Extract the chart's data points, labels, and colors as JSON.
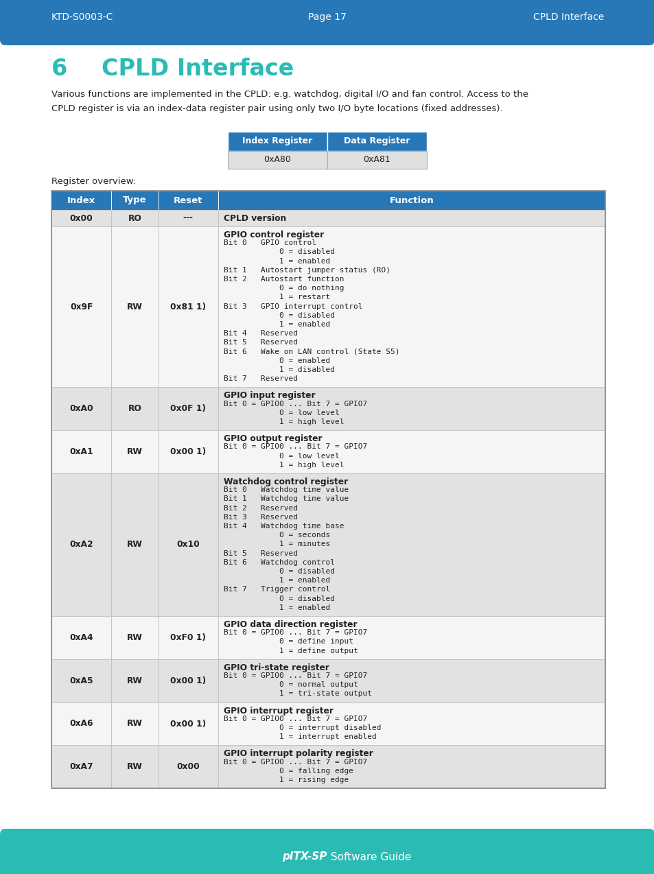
{
  "header_bg": "#2878b8",
  "header_text_color": "#ffffff",
  "footer_bg": "#2abcb4",
  "footer_text_color": "#ffffff",
  "page_bg": "#ffffff",
  "teal_color": "#2abcb4",
  "blue_color": "#2878b8",
  "dark_text": "#222222",
  "header_left": "KTD-S0003-C",
  "header_center": "Page 17",
  "header_right": "CPLD Interface",
  "footer_center_bold": "pITX-SP",
  "footer_center_rest": " Software Guide",
  "section_number": "6",
  "section_title": "CPLD Interface",
  "body_line1": "Various functions are implemented in the CPLD: e.g. watchdog, digital I/O and fan control. Access to the",
  "body_line2": "CPLD register is via an index-data register pair using only two I/O byte locations (fixed addresses).",
  "small_table_headers": [
    "Index Register",
    "Data Register"
  ],
  "small_table_row": [
    "0xA80",
    "0xA81"
  ],
  "register_overview_label": "Register overview:",
  "table_headers": [
    "Index",
    "Type",
    "Reset",
    "Function"
  ],
  "table_header_bg": "#2878b8",
  "table_header_text": "#ffffff",
  "table_row_alt": "#e2e2e2",
  "table_row_white": "#f5f5f5",
  "table_border": "#bbbbbb",
  "table_data": [
    {
      "index": "0x00",
      "type": "RO",
      "reset": "---",
      "function_lines": [
        "CPLD version"
      ]
    },
    {
      "index": "0x9F",
      "type": "RW",
      "reset": "0x81 1)",
      "function_lines": [
        "GPIO control register",
        "Bit 0   GPIO control",
        "            0 = disabled",
        "            1 = enabled",
        "Bit 1   Autostart jumper status (RO)",
        "Bit 2   Autostart function",
        "            0 = do nothing",
        "            1 = restart",
        "Bit 3   GPIO interrupt control",
        "            0 = disabled",
        "            1 = enabled",
        "Bit 4   Reserved",
        "Bit 5   Reserved",
        "Bit 6   Wake on LAN control (State S5)",
        "            0 = enabled",
        "            1 = disabled",
        "Bit 7   Reserved"
      ]
    },
    {
      "index": "0xA0",
      "type": "RO",
      "reset": "0x0F 1)",
      "function_lines": [
        "GPIO input register",
        "Bit 0 = GPIO0 ... Bit 7 = GPIO7",
        "            0 = low level",
        "            1 = high level"
      ]
    },
    {
      "index": "0xA1",
      "type": "RW",
      "reset": "0x00 1)",
      "function_lines": [
        "GPIO output register",
        "Bit 0 = GPIO0 ... Bit 7 = GPIO7",
        "            0 = low level",
        "            1 = high level"
      ]
    },
    {
      "index": "0xA2",
      "type": "RW",
      "reset": "0x10",
      "function_lines": [
        "Watchdog control register",
        "Bit 0   Watchdog time value",
        "Bit 1   Watchdog time value",
        "Bit 2   Reserved",
        "Bit 3   Reserved",
        "Bit 4   Watchdog time base",
        "            0 = seconds",
        "            1 = minutes",
        "Bit 5   Reserved",
        "Bit 6   Watchdog control",
        "            0 = disabled",
        "            1 = enabled",
        "Bit 7   Trigger control",
        "            0 = disabled",
        "            1 = enabled"
      ]
    },
    {
      "index": "0xA4",
      "type": "RW",
      "reset": "0xF0 1)",
      "function_lines": [
        "GPIO data direction register",
        "Bit 0 = GPIO0 ... Bit 7 = GPIO7",
        "            0 = define input",
        "            1 = define output"
      ]
    },
    {
      "index": "0xA5",
      "type": "RW",
      "reset": "0x00 1)",
      "function_lines": [
        "GPIO tri-state register",
        "Bit 0 = GPIO0 ... Bit 7 = GPIO7",
        "            0 = normal output",
        "            1 = tri-state output"
      ]
    },
    {
      "index": "0xA6",
      "type": "RW",
      "reset": "0x00 1)",
      "function_lines": [
        "GPIO interrupt register",
        "Bit 0 = GPIO0 ... Bit 7 = GPIO7",
        "            0 = interrupt disabled",
        "            1 = interrupt enabled"
      ]
    },
    {
      "index": "0xA7",
      "type": "RW",
      "reset": "0x00",
      "function_lines": [
        "GPIO interrupt polarity register",
        "Bit 0 = GPIO0 ... Bit 7 = GPIO7",
        "            0 = falling edge",
        "            1 = rising edge"
      ]
    }
  ]
}
